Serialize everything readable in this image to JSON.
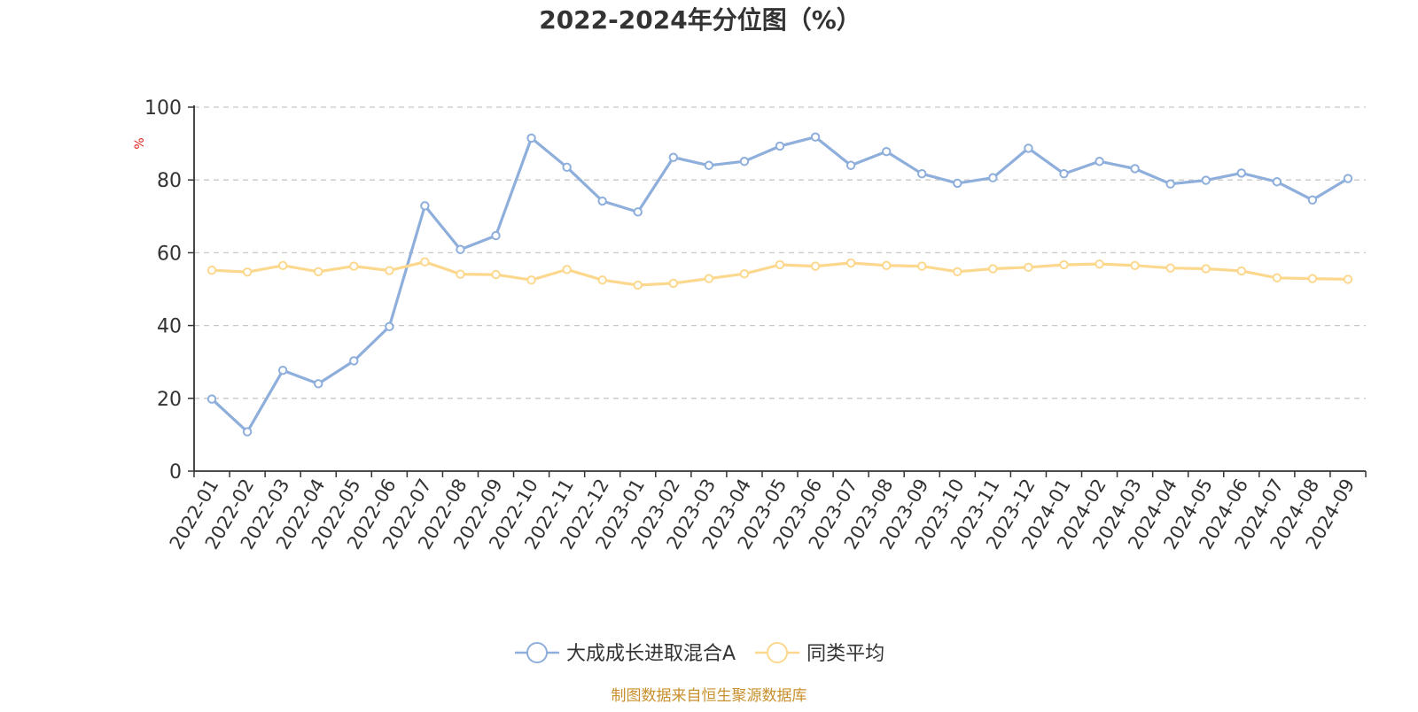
{
  "chart_data": {
    "type": "line",
    "title": "2022-2024年分位图（%）",
    "ylabel": "%",
    "xlabel": "",
    "ylim": [
      0,
      100
    ],
    "yticks": [
      0,
      20,
      40,
      60,
      80,
      100
    ],
    "grid": true,
    "legend_position": "bottom-center",
    "categories": [
      "2022-01",
      "2022-02",
      "2022-03",
      "2022-04",
      "2022-05",
      "2022-06",
      "2022-07",
      "2022-08",
      "2022-09",
      "2022-10",
      "2022-11",
      "2022-12",
      "2023-01",
      "2023-02",
      "2023-03",
      "2023-04",
      "2023-05",
      "2023-06",
      "2023-07",
      "2023-08",
      "2023-09",
      "2023-10",
      "2023-11",
      "2023-12",
      "2024-01",
      "2024-02",
      "2024-03",
      "2024-04",
      "2024-05",
      "2024-06",
      "2024-07",
      "2024-08",
      "2024-09"
    ],
    "series": [
      {
        "name": "大成成长进取混合A",
        "color": "#8eaedb",
        "values": [
          19.8,
          10.8,
          27.7,
          24.0,
          30.3,
          39.7,
          72.9,
          60.9,
          64.7,
          91.5,
          83.5,
          74.2,
          71.2,
          86.2,
          84.0,
          85.1,
          89.3,
          91.8,
          84.0,
          87.8,
          81.7,
          79.1,
          80.6,
          88.7,
          81.7,
          85.1,
          83.1,
          78.9,
          79.9,
          81.9,
          79.5,
          74.5,
          80.4
        ]
      },
      {
        "name": "同类平均",
        "color": "#fcd88e",
        "values": [
          55.2,
          54.7,
          56.5,
          54.8,
          56.3,
          55.1,
          57.5,
          54.1,
          54.0,
          52.5,
          55.4,
          52.5,
          51.1,
          51.6,
          52.9,
          54.2,
          56.7,
          56.3,
          57.2,
          56.5,
          56.3,
          54.8,
          55.6,
          56.0,
          56.7,
          56.9,
          56.5,
          55.8,
          55.6,
          55.0,
          53.1,
          52.9,
          52.7
        ]
      }
    ],
    "source_note": "制图数据来自恒生聚源数据库"
  }
}
